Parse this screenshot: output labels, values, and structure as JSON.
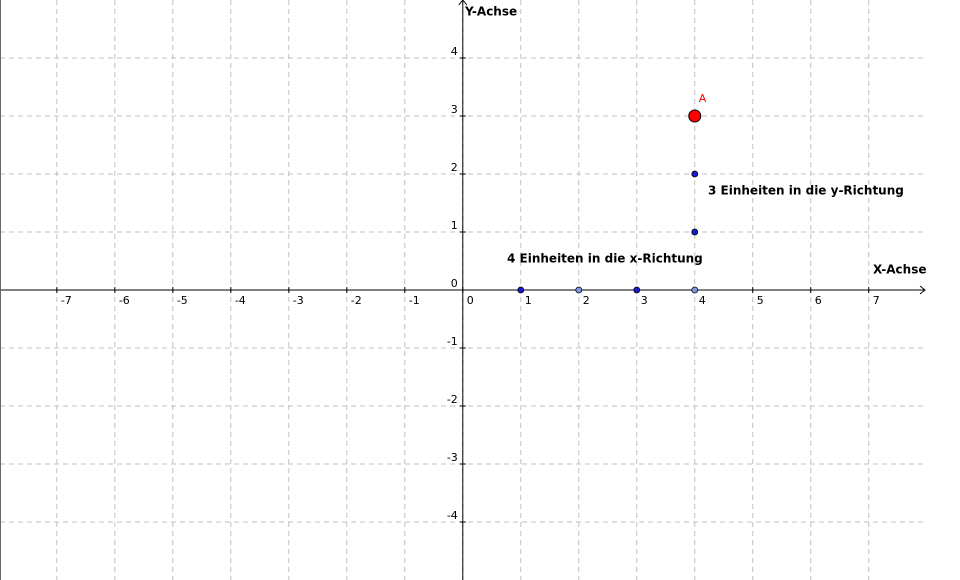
{
  "chart_data": {
    "type": "scatter",
    "x_label": "X-Achse",
    "y_label": "Y-Achse",
    "xlim": [
      -7.98,
      7.97
    ],
    "ylim": [
      -5,
      5
    ],
    "xticks": [
      -7,
      -6,
      -5,
      -4,
      -3,
      -2,
      -1,
      0,
      1,
      2,
      3,
      4,
      5,
      6,
      7
    ],
    "yticks": [
      -4,
      -3,
      -2,
      -1,
      0,
      1,
      2,
      3,
      4
    ],
    "grid": true,
    "series": [
      {
        "x": [
          1,
          3,
          4,
          4
        ],
        "values": [
          0,
          0,
          1,
          2
        ],
        "color": "#1a1acc"
      },
      {
        "x": [
          2,
          4
        ],
        "values": [
          0,
          0
        ],
        "color": "#8099e6"
      },
      {
        "x": [
          4
        ],
        "values": [
          3
        ],
        "color": "#ff0000",
        "point_labels": [
          "A"
        ]
      }
    ],
    "annotations": [
      "4 Einheiten in die x-Richtung",
      "3 Einheiten in die y-Richtung"
    ]
  }
}
